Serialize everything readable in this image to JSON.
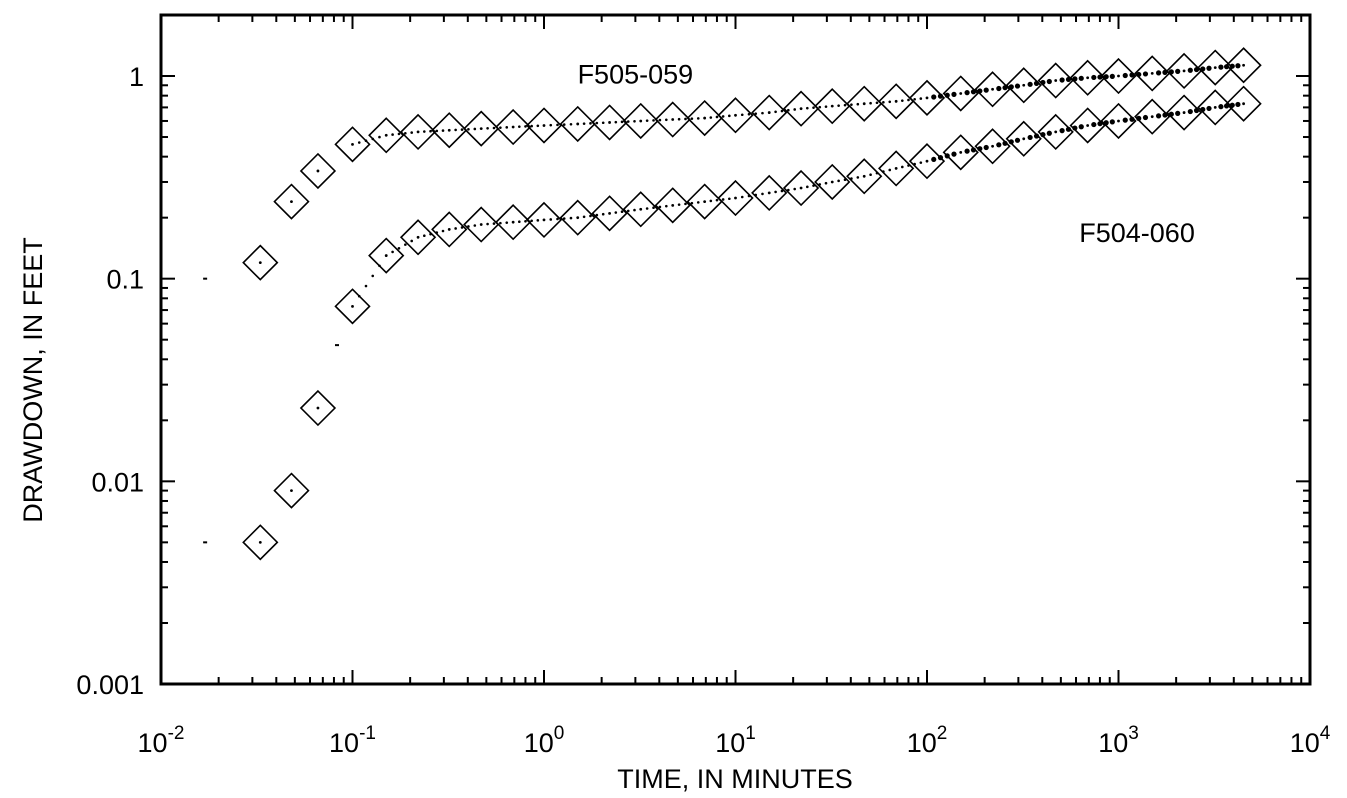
{
  "chart_data": {
    "type": "scatter",
    "xscale": "log",
    "yscale": "log",
    "xlim": [
      0.01,
      10000
    ],
    "ylim": [
      0.001,
      2
    ],
    "xlabel": "TIME, IN MINUTES",
    "ylabel": "DRAWDOWN, IN FEET",
    "x_tick_labels": [
      {
        "base": "10",
        "exp": "-2",
        "value": 0.01
      },
      {
        "base": "10",
        "exp": "-1",
        "value": 0.1
      },
      {
        "base": "10",
        "exp": "0",
        "value": 1
      },
      {
        "base": "10",
        "exp": "1",
        "value": 10
      },
      {
        "base": "10",
        "exp": "2",
        "value": 100
      },
      {
        "base": "10",
        "exp": "3",
        "value": 1000
      },
      {
        "base": "10",
        "exp": "4",
        "value": 10000
      }
    ],
    "y_tick_labels": [
      {
        "text": "1",
        "value": 1
      },
      {
        "text": "0.1",
        "value": 0.1
      },
      {
        "text": "0.01",
        "value": 0.01
      },
      {
        "text": "0.001",
        "value": 0.001
      }
    ],
    "grid": false,
    "legend": "none",
    "series": [
      {
        "name": "F505-059",
        "label_at": [
          3,
          1.03
        ],
        "color": "#000000",
        "marker": "open-diamond",
        "x": [
          0.033,
          0.048,
          0.066,
          0.1,
          0.15,
          0.22,
          0.32,
          0.47,
          0.69,
          1.0,
          1.5,
          2.2,
          3.2,
          4.7,
          6.9,
          10,
          15,
          22,
          32,
          47,
          69,
          100,
          150,
          220,
          320,
          470,
          690,
          1000,
          1500,
          2200,
          3200,
          4500
        ],
        "y": [
          0.12,
          0.24,
          0.34,
          0.46,
          0.51,
          0.53,
          0.54,
          0.55,
          0.56,
          0.57,
          0.58,
          0.59,
          0.6,
          0.61,
          0.62,
          0.64,
          0.66,
          0.69,
          0.71,
          0.73,
          0.75,
          0.78,
          0.82,
          0.86,
          0.9,
          0.95,
          0.98,
          1.0,
          1.03,
          1.06,
          1.1,
          1.13
        ]
      },
      {
        "name": "F504-060",
        "label_at": [
          1250,
          0.17
        ],
        "color": "#000000",
        "marker": "open-diamond",
        "x": [
          0.033,
          0.048,
          0.066,
          0.1,
          0.15,
          0.22,
          0.32,
          0.47,
          0.69,
          1.0,
          1.5,
          2.2,
          3.2,
          4.7,
          6.9,
          10,
          15,
          22,
          32,
          47,
          69,
          100,
          150,
          220,
          320,
          470,
          690,
          1000,
          1500,
          2200,
          3200,
          4500
        ],
        "y": [
          0.005,
          0.009,
          0.023,
          0.073,
          0.13,
          0.16,
          0.175,
          0.185,
          0.19,
          0.195,
          0.2,
          0.21,
          0.22,
          0.23,
          0.24,
          0.25,
          0.265,
          0.28,
          0.3,
          0.32,
          0.35,
          0.38,
          0.42,
          0.45,
          0.49,
          0.53,
          0.57,
          0.6,
          0.63,
          0.66,
          0.7,
          0.73
        ]
      },
      {
        "name": "",
        "color": "#000000",
        "marker": "small-dot",
        "x": [
          0.017,
          0.017,
          0.083
        ],
        "y": [
          0.1,
          0.005,
          0.047
        ]
      }
    ]
  }
}
